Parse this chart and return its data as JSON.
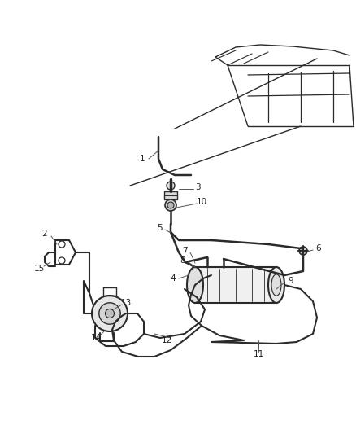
{
  "background_color": "#ffffff",
  "line_color": "#2a2a2a",
  "label_color": "#222222",
  "figsize": [
    4.38,
    5.33
  ],
  "dpi": 100
}
